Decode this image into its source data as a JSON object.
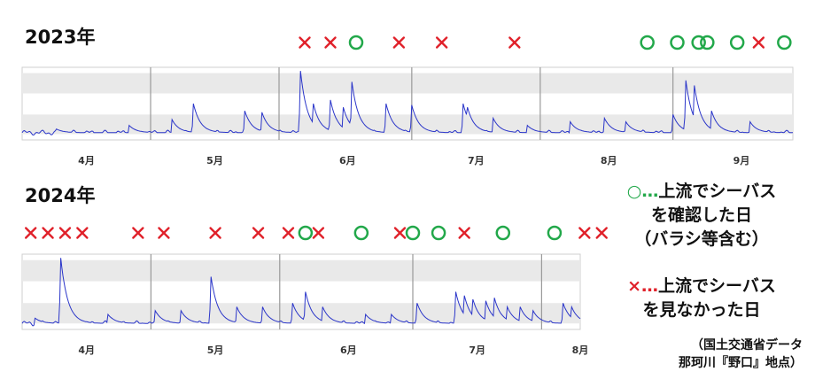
{
  "legend": {
    "seen_marker": "○…",
    "seen_line1": "上流でシーバス",
    "seen_line2": "を確認した日",
    "seen_line3": "（バラシ等含む）",
    "not_seen_marker": "×…",
    "not_seen_line1": "上流でシーバス",
    "not_seen_line2": "を見なかった日",
    "seen_color": "#22a84a",
    "not_seen_color": "#e0212a"
  },
  "source": {
    "line1": "（国土交通省データ",
    "line2": "那珂川『野口』地点）"
  },
  "chart_data": [
    {
      "type": "line",
      "title": "2023年",
      "x_range_days": [
        0,
        180
      ],
      "month_ticks": [
        {
          "label": "4月",
          "day": 15
        },
        {
          "label": "5月",
          "day": 45
        },
        {
          "label": "6月",
          "day": 76
        },
        {
          "label": "7月",
          "day": 106
        },
        {
          "label": "8月",
          "day": 137
        },
        {
          "label": "9月",
          "day": 168
        }
      ],
      "base_level": 0.1,
      "peaks": [
        [
          8,
          0.15
        ],
        [
          25,
          0.2
        ],
        [
          35,
          0.28
        ],
        [
          40,
          0.5
        ],
        [
          52,
          0.4
        ],
        [
          56,
          0.38
        ],
        [
          65,
          0.95
        ],
        [
          68,
          0.5
        ],
        [
          72,
          0.55
        ],
        [
          75,
          0.45
        ],
        [
          77,
          0.8
        ],
        [
          85,
          0.5
        ],
        [
          91,
          0.48
        ],
        [
          103,
          0.5
        ],
        [
          104,
          0.45
        ],
        [
          110,
          0.3
        ],
        [
          118,
          0.2
        ],
        [
          128,
          0.25
        ],
        [
          136,
          0.3
        ],
        [
          141,
          0.25
        ],
        [
          152,
          0.35
        ],
        [
          155,
          0.82
        ],
        [
          157,
          0.75
        ],
        [
          161,
          0.4
        ],
        [
          170,
          0.25
        ]
      ],
      "markers": [
        {
          "symbol": "×",
          "day": 66
        },
        {
          "symbol": "×",
          "day": 72
        },
        {
          "symbol": "○",
          "day": 78
        },
        {
          "symbol": "×",
          "day": 88
        },
        {
          "symbol": "×",
          "day": 98
        },
        {
          "symbol": "×",
          "day": 115
        },
        {
          "symbol": "○",
          "day": 146
        },
        {
          "symbol": "○",
          "day": 153
        },
        {
          "symbol": "○",
          "day": 158
        },
        {
          "symbol": "○",
          "day": 160
        },
        {
          "symbol": "○",
          "day": 167
        },
        {
          "symbol": "×",
          "day": 172
        },
        {
          "symbol": "○",
          "day": 178
        }
      ]
    },
    {
      "type": "line",
      "title": "2024年",
      "x_range_days": [
        0,
        130
      ],
      "month_ticks": [
        {
          "label": "4月",
          "day": 15
        },
        {
          "label": "5月",
          "day": 45
        },
        {
          "label": "6月",
          "day": 76
        },
        {
          "label": "7月",
          "day": 106
        },
        {
          "label": "8月",
          "day": 130
        }
      ],
      "base_level": 0.08,
      "peaks": [
        [
          3,
          0.15
        ],
        [
          9,
          0.95
        ],
        [
          20,
          0.2
        ],
        [
          31,
          0.25
        ],
        [
          37,
          0.25
        ],
        [
          44,
          0.7
        ],
        [
          50,
          0.3
        ],
        [
          56,
          0.3
        ],
        [
          63,
          0.35
        ],
        [
          66,
          0.5
        ],
        [
          70,
          0.3
        ],
        [
          80,
          0.2
        ],
        [
          86,
          0.2
        ],
        [
          92,
          0.35
        ],
        [
          101,
          0.5
        ],
        [
          103,
          0.45
        ],
        [
          105,
          0.4
        ],
        [
          108,
          0.38
        ],
        [
          110,
          0.42
        ],
        [
          113,
          0.3
        ],
        [
          116,
          0.3
        ],
        [
          119,
          0.25
        ],
        [
          126,
          0.35
        ],
        [
          128,
          0.3
        ]
      ],
      "markers": [
        {
          "symbol": "×",
          "day": 2
        },
        {
          "symbol": "×",
          "day": 6
        },
        {
          "symbol": "×",
          "day": 10
        },
        {
          "symbol": "×",
          "day": 14
        },
        {
          "symbol": "×",
          "day": 27
        },
        {
          "symbol": "×",
          "day": 33
        },
        {
          "symbol": "×",
          "day": 45
        },
        {
          "symbol": "×",
          "day": 55
        },
        {
          "symbol": "×",
          "day": 62
        },
        {
          "symbol": "○",
          "day": 66
        },
        {
          "symbol": "×",
          "day": 69
        },
        {
          "symbol": "○",
          "day": 79
        },
        {
          "symbol": "×",
          "day": 88
        },
        {
          "symbol": "○",
          "day": 91
        },
        {
          "symbol": "○",
          "day": 97
        },
        {
          "symbol": "×",
          "day": 103
        },
        {
          "symbol": "○",
          "day": 112
        },
        {
          "symbol": "○",
          "day": 124
        },
        {
          "symbol": "×",
          "day": 131
        },
        {
          "symbol": "×",
          "day": 135
        }
      ]
    }
  ]
}
